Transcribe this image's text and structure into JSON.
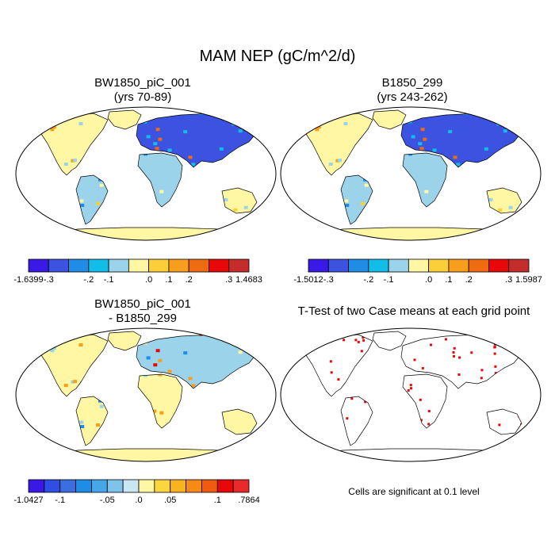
{
  "figure": {
    "title": "MAM NEP (gC/m^2/d)"
  },
  "panels": [
    {
      "id": "case1",
      "title_line1": "BW1850_piC_001",
      "title_line2": "(yrs 70-89)",
      "colorbar": {
        "colors": [
          "#3a19e6",
          "#3b53e0",
          "#1f8ce6",
          "#12bde8",
          "#9ad3ea",
          "#fff7a3",
          "#fccf3a",
          "#f79f1c",
          "#f06a10",
          "#e8080a",
          "#c52c2c"
        ],
        "labels": [
          "-1.6399",
          "-.3",
          "-.2",
          "-.1",
          ".0",
          ".1",
          ".2",
          ".3",
          "1.4683"
        ]
      }
    },
    {
      "id": "case2",
      "title_line1": "B1850_299",
      "title_line2": "(yrs 243-262)",
      "colorbar": {
        "colors": [
          "#3a19e6",
          "#3b53e0",
          "#1f8ce6",
          "#12bde8",
          "#9ad3ea",
          "#fff7a3",
          "#fccf3a",
          "#f79f1c",
          "#f06a10",
          "#e8080a",
          "#c52c2c"
        ],
        "labels": [
          "-1.5012",
          "-.3",
          "-.2",
          "-.1",
          ".0",
          ".1",
          ".2",
          ".3",
          "1.5987"
        ]
      }
    },
    {
      "id": "diff",
      "title_line1": "BW1850_piC_001",
      "title_line2": "- B1850_299",
      "colorbar": {
        "colors": [
          "#3a19e6",
          "#2f4ee4",
          "#3b6ee0",
          "#1f8ce6",
          "#45a6e8",
          "#7fc3ea",
          "#c9e7f2",
          "#fff7a3",
          "#fbd63f",
          "#f8b321",
          "#f58a16",
          "#f05b10",
          "#e8080a",
          "#e82a2a"
        ],
        "labels": [
          "-1.0427",
          "-.1",
          "-.05",
          ".0",
          ".05",
          ".1",
          ".7864"
        ]
      }
    },
    {
      "id": "ttest",
      "title_line1": "T-Test of two Case means at each grid point",
      "footnote": "Cells are significant at 0.1 level"
    }
  ]
}
